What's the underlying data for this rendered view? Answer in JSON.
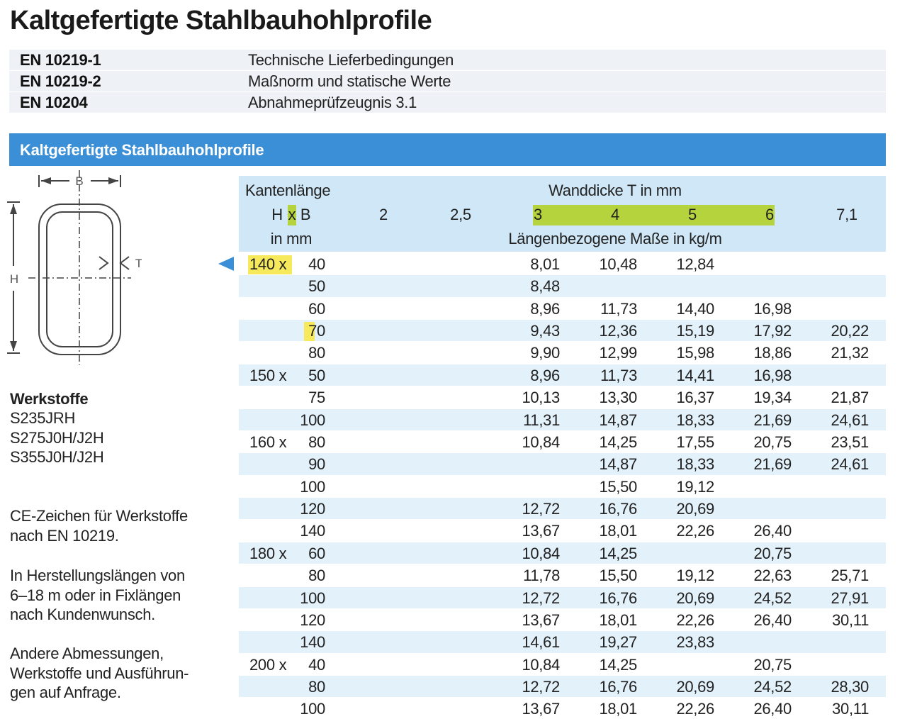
{
  "title": "Kaltgefertigte Stahlbauhohlprofile",
  "standards": [
    {
      "code": "EN 10219-1",
      "description": "Technische Lieferbedingungen"
    },
    {
      "code": "EN 10219-2",
      "description": "Maßnorm und statische Werte"
    },
    {
      "code": "EN 10204",
      "description": "Abnahmeprüfzeugnis 3.1"
    }
  ],
  "section_title": "Kaltgefertigte Stahlbauhohlprofile",
  "diagram": {
    "width_label": "B",
    "height_label": "H",
    "thickness_label": "T"
  },
  "materials": {
    "heading": "Werkstoffe",
    "items": [
      "S235JRH",
      "S275J0H/J2H",
      "S355J0H/J2H"
    ]
  },
  "notes": [
    [
      "CE-Zeichen für Werkstoffe",
      "nach EN 10219."
    ],
    [
      "In Herstellungslängen von",
      "6–18 m oder in Fixlängen",
      "nach Kundenwunsch."
    ],
    [
      "Andere Abmessungen,",
      "Werkstoffe und Ausführun-",
      "gen auf Anfrage."
    ]
  ],
  "table": {
    "header": {
      "edge_length": "Kantenlänge",
      "h": "H",
      "x": "x",
      "b": "B",
      "unit": "in mm",
      "wall_thickness": "Wanddicke T in mm",
      "thicknesses": [
        "2",
        "2,5",
        "3",
        "4",
        "5",
        "6",
        "7,1"
      ],
      "weight": "Längenbezogene Maße in kg/m"
    },
    "rows": [
      {
        "h": "140 x",
        "b": "40",
        "values": [
          null,
          null,
          "8,01",
          "10,48",
          "12,84",
          null,
          null
        ]
      },
      {
        "h": null,
        "b": "50",
        "values": [
          null,
          null,
          "8,48",
          null,
          null,
          null,
          null
        ]
      },
      {
        "h": null,
        "b": "60",
        "values": [
          null,
          null,
          "8,96",
          "11,73",
          "14,40",
          "16,98",
          null
        ]
      },
      {
        "h": null,
        "b": "70",
        "values": [
          null,
          null,
          "9,43",
          "12,36",
          "15,19",
          "17,92",
          "20,22"
        ]
      },
      {
        "h": null,
        "b": "80",
        "values": [
          null,
          null,
          "9,90",
          "12,99",
          "15,98",
          "18,86",
          "21,32"
        ]
      },
      {
        "h": "150 x",
        "b": "50",
        "values": [
          null,
          null,
          "8,96",
          "11,73",
          "14,41",
          "16,98",
          null
        ]
      },
      {
        "h": null,
        "b": "75",
        "values": [
          null,
          null,
          "10,13",
          "13,30",
          "16,37",
          "19,34",
          "21,87"
        ]
      },
      {
        "h": null,
        "b": "100",
        "values": [
          null,
          null,
          "11,31",
          "14,87",
          "18,33",
          "21,69",
          "24,61"
        ]
      },
      {
        "h": "160 x",
        "b": "80",
        "values": [
          null,
          null,
          "10,84",
          "14,25",
          "17,55",
          "20,75",
          "23,51"
        ]
      },
      {
        "h": null,
        "b": "90",
        "values": [
          null,
          null,
          null,
          "14,87",
          "18,33",
          "21,69",
          "24,61"
        ]
      },
      {
        "h": null,
        "b": "100",
        "values": [
          null,
          null,
          null,
          "15,50",
          "19,12",
          null,
          null
        ]
      },
      {
        "h": null,
        "b": "120",
        "values": [
          null,
          null,
          "12,72",
          "16,76",
          "20,69",
          null,
          null
        ]
      },
      {
        "h": null,
        "b": "140",
        "values": [
          null,
          null,
          "13,67",
          "18,01",
          "22,26",
          "26,40",
          null
        ]
      },
      {
        "h": "180 x",
        "b": "60",
        "values": [
          null,
          null,
          "10,84",
          "14,25",
          null,
          "20,75",
          null
        ]
      },
      {
        "h": null,
        "b": "80",
        "values": [
          null,
          null,
          "11,78",
          "15,50",
          "19,12",
          "22,63",
          "25,71"
        ]
      },
      {
        "h": null,
        "b": "100",
        "values": [
          null,
          null,
          "12,72",
          "16,76",
          "20,69",
          "24,52",
          "27,91"
        ]
      },
      {
        "h": null,
        "b": "120",
        "values": [
          null,
          null,
          "13,67",
          "18,01",
          "22,26",
          "26,40",
          "30,11"
        ]
      },
      {
        "h": null,
        "b": "140",
        "values": [
          null,
          null,
          "14,61",
          "19,27",
          "23,83",
          null,
          null
        ]
      },
      {
        "h": "200 x",
        "b": "40",
        "values": [
          null,
          null,
          "10,84",
          "14,25",
          null,
          "20,75",
          null
        ]
      },
      {
        "h": null,
        "b": "80",
        "values": [
          null,
          null,
          "12,72",
          "16,76",
          "20,69",
          "24,52",
          "28,30"
        ]
      },
      {
        "h": null,
        "b": "100",
        "values": [
          null,
          null,
          "13,67",
          "18,01",
          "22,26",
          "26,40",
          "30,11"
        ]
      }
    ]
  }
}
